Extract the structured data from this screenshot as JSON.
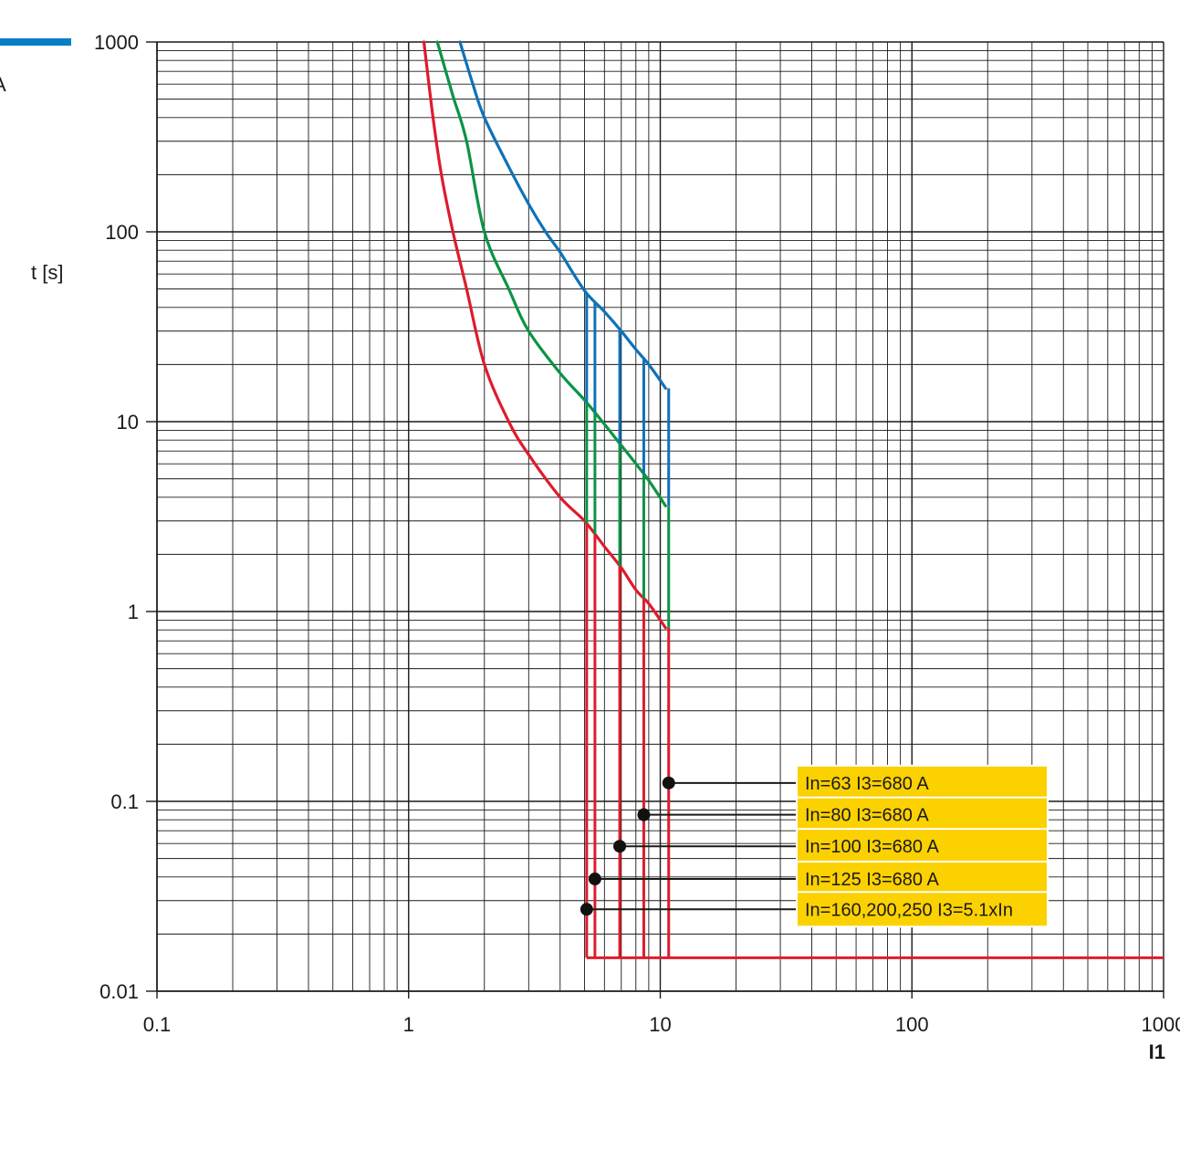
{
  "chart_data": {
    "type": "line",
    "xscale": "log",
    "yscale": "log",
    "xlim": [
      0.1,
      1000
    ],
    "ylim": [
      0.01,
      1000
    ],
    "xlabel": "I1",
    "ylabel": "t [s]",
    "x_ticks": [
      "0.1",
      "1",
      "10",
      "100",
      "1000"
    ],
    "y_ticks": [
      "0.01",
      "0.1",
      "1",
      "10",
      "100",
      "1000"
    ],
    "grid": true,
    "edge_fragment": "A",
    "header_bar_color": "#0a7ec4",
    "colors": {
      "upper": "#0e72b8",
      "middle": "#0b9444",
      "lower": "#df1b2c",
      "annotation_box": "#fcd100"
    },
    "series": [
      {
        "role": "upper",
        "color": "#0e72b8",
        "points": [
          [
            1.6,
            1000
          ],
          [
            1.8,
            600
          ],
          [
            2.0,
            400
          ],
          [
            2.5,
            220
          ],
          [
            3.0,
            140
          ],
          [
            3.5,
            100
          ],
          [
            4.0,
            78
          ],
          [
            5.0,
            49
          ],
          [
            6.0,
            38
          ],
          [
            7.0,
            30
          ],
          [
            8.0,
            24
          ],
          [
            9.0,
            20
          ],
          [
            10.5,
            15
          ]
        ]
      },
      {
        "role": "middle",
        "color": "#0b9444",
        "points": [
          [
            1.3,
            1000
          ],
          [
            1.5,
            520
          ],
          [
            1.7,
            300
          ],
          [
            2.0,
            100
          ],
          [
            2.5,
            50
          ],
          [
            3.0,
            30
          ],
          [
            4.0,
            18
          ],
          [
            5.0,
            13
          ],
          [
            6.0,
            9.7
          ],
          [
            7.0,
            7.5
          ],
          [
            8.0,
            6.0
          ],
          [
            9.0,
            4.9
          ],
          [
            10.5,
            3.6
          ]
        ]
      },
      {
        "role": "lower",
        "color": "#df1b2c",
        "points": [
          [
            1.15,
            1000
          ],
          [
            1.25,
            400
          ],
          [
            1.35,
            200
          ],
          [
            1.5,
            100
          ],
          [
            1.7,
            50
          ],
          [
            2.0,
            20
          ],
          [
            2.5,
            10
          ],
          [
            3.0,
            6.7
          ],
          [
            4.0,
            4.0
          ],
          [
            5.0,
            3.0
          ],
          [
            6.0,
            2.2
          ],
          [
            7.0,
            1.7
          ],
          [
            8.0,
            1.3
          ],
          [
            9.0,
            1.1
          ],
          [
            10.5,
            0.82
          ]
        ]
      }
    ],
    "thresholds": [
      {
        "label": "In=63 I3=680 A",
        "x": 10.8,
        "marker_t": 0.125
      },
      {
        "label": "In=80 I3=680 A",
        "x": 8.6,
        "marker_t": 0.085
      },
      {
        "label": "In=100 I3=680 A",
        "x": 6.9,
        "marker_t": 0.058
      },
      {
        "label": "In=125 I3=680 A",
        "x": 5.5,
        "marker_t": 0.039
      },
      {
        "label": "In=160,200,250 I3=5.1xIn",
        "x": 5.1,
        "marker_t": 0.027
      }
    ],
    "floor_t": 0.015
  }
}
